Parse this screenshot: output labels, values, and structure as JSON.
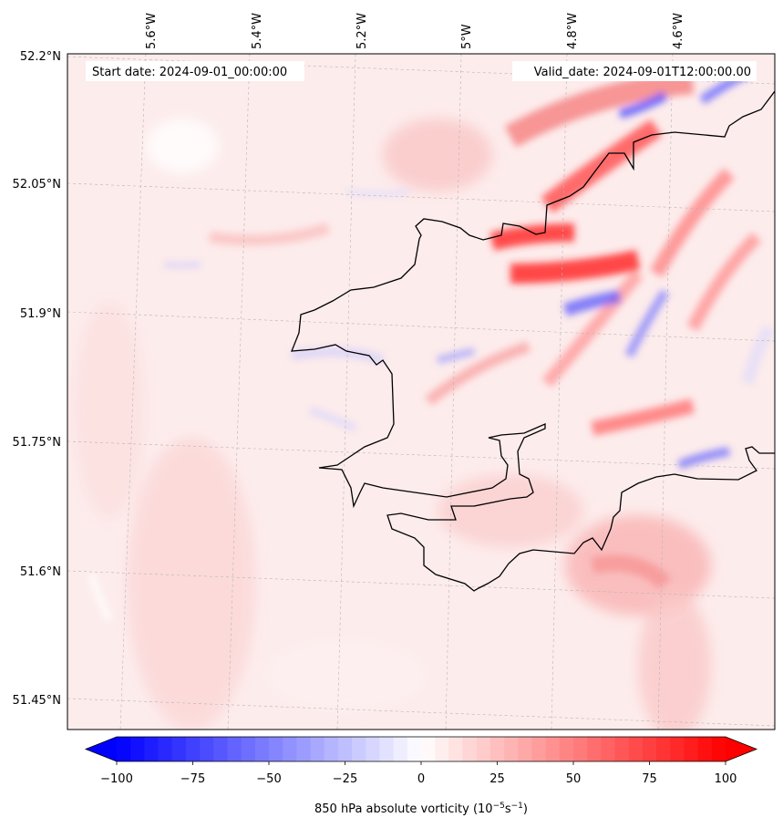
{
  "map": {
    "start_date": "Start date: 2024-09-01_00:00:00",
    "valid_date": "Valid_date: 2024-09-01T12:00:00.00",
    "lon_ticks": [
      "5.6°W",
      "5.4°W",
      "5.2°W",
      "5°W",
      "4.8°W",
      "4.6°W"
    ],
    "lat_ticks": [
      "52.2°N",
      "52.05°N",
      "51.9°N",
      "51.75°N",
      "51.6°N",
      "51.45°N"
    ]
  },
  "colorbar": {
    "ticks": [
      "−100",
      "−75",
      "−50",
      "−25",
      "0",
      "25",
      "50",
      "75",
      "100"
    ],
    "label_main": "850 hPa absolute vorticity (10",
    "label_exp1": "−5",
    "label_mid": "s",
    "label_exp2": "−1",
    "label_end": ")",
    "neg_color": "#0000ff",
    "pos_color": "#ff0000",
    "levels": 44
  }
}
